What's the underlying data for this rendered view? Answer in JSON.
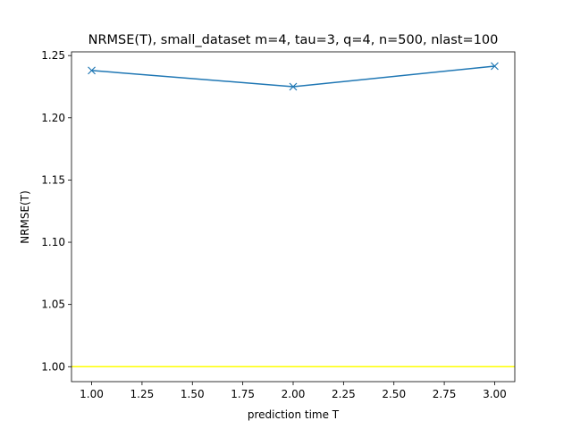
{
  "chart_data": {
    "type": "line",
    "title": "NRMSE(T), small_dataset m=4, tau=3, q=4, n=500, nlast=100",
    "xlabel": "prediction time T",
    "ylabel": "NRMSE(T)",
    "xlim": [
      0.9,
      3.1
    ],
    "ylim": [
      0.988,
      1.253
    ],
    "grid": false,
    "x_ticks": [
      1.0,
      1.25,
      1.5,
      1.75,
      2.0,
      2.25,
      2.5,
      2.75,
      3.0
    ],
    "x_tick_labels": [
      "1.00",
      "1.25",
      "1.50",
      "1.75",
      "2.00",
      "2.25",
      "2.50",
      "2.75",
      "3.00"
    ],
    "y_ticks": [
      1.0,
      1.05,
      1.1,
      1.15,
      1.2,
      1.25
    ],
    "y_tick_labels": [
      "1.00",
      "1.05",
      "1.10",
      "1.15",
      "1.20",
      "1.25"
    ],
    "series": [
      {
        "x": [
          1.0,
          2.0,
          3.0
        ],
        "y": [
          1.238,
          1.225,
          1.2415
        ],
        "color": "#1f77b4",
        "marker": "x"
      }
    ],
    "reference_lines": [
      {
        "orientation": "horizontal",
        "y": 1.0,
        "color": "#ffff00"
      }
    ]
  }
}
